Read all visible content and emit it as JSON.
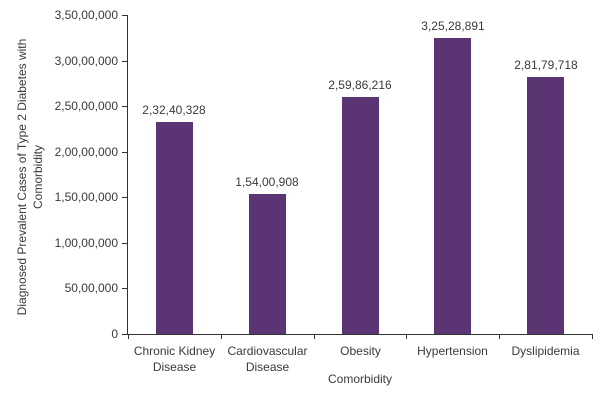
{
  "chart_data": {
    "type": "bar",
    "title": "",
    "categories": [
      "Chronic Kidney Disease",
      "Cardiovascular Disease",
      "Obesity",
      "Hypertension",
      "Dyslipidemia"
    ],
    "values": [
      23240328,
      15400908,
      25986216,
      32528891,
      28179718
    ],
    "data_labels": [
      "2,32,40,328",
      "1,54,00,908",
      "2,59,86,216",
      "3,25,28,891",
      "2,81,79,718"
    ],
    "xlabel": "Comorbidity",
    "ylabel": "Diagnosed Prevalent Cases of Type 2 Diabetes with Comorbidity",
    "ylim": [
      0,
      35000000
    ],
    "y_tick_step": 5000000,
    "y_ticks": [
      0,
      5000000,
      10000000,
      15000000,
      20000000,
      25000000,
      30000000,
      35000000
    ],
    "y_tick_labels": [
      "0",
      "50,00,000",
      "1,00,00,000",
      "1,50,00,000",
      "2,00,00,000",
      "2,50,00,000",
      "3,00,00,000",
      "3,50,00,000"
    ],
    "number_format": "indian",
    "grid": false,
    "legend_position": "none",
    "colors": {
      "bar": "#5a3473",
      "axis": "#333333",
      "text": "#3a3a3a",
      "background": "#ffffff"
    }
  }
}
